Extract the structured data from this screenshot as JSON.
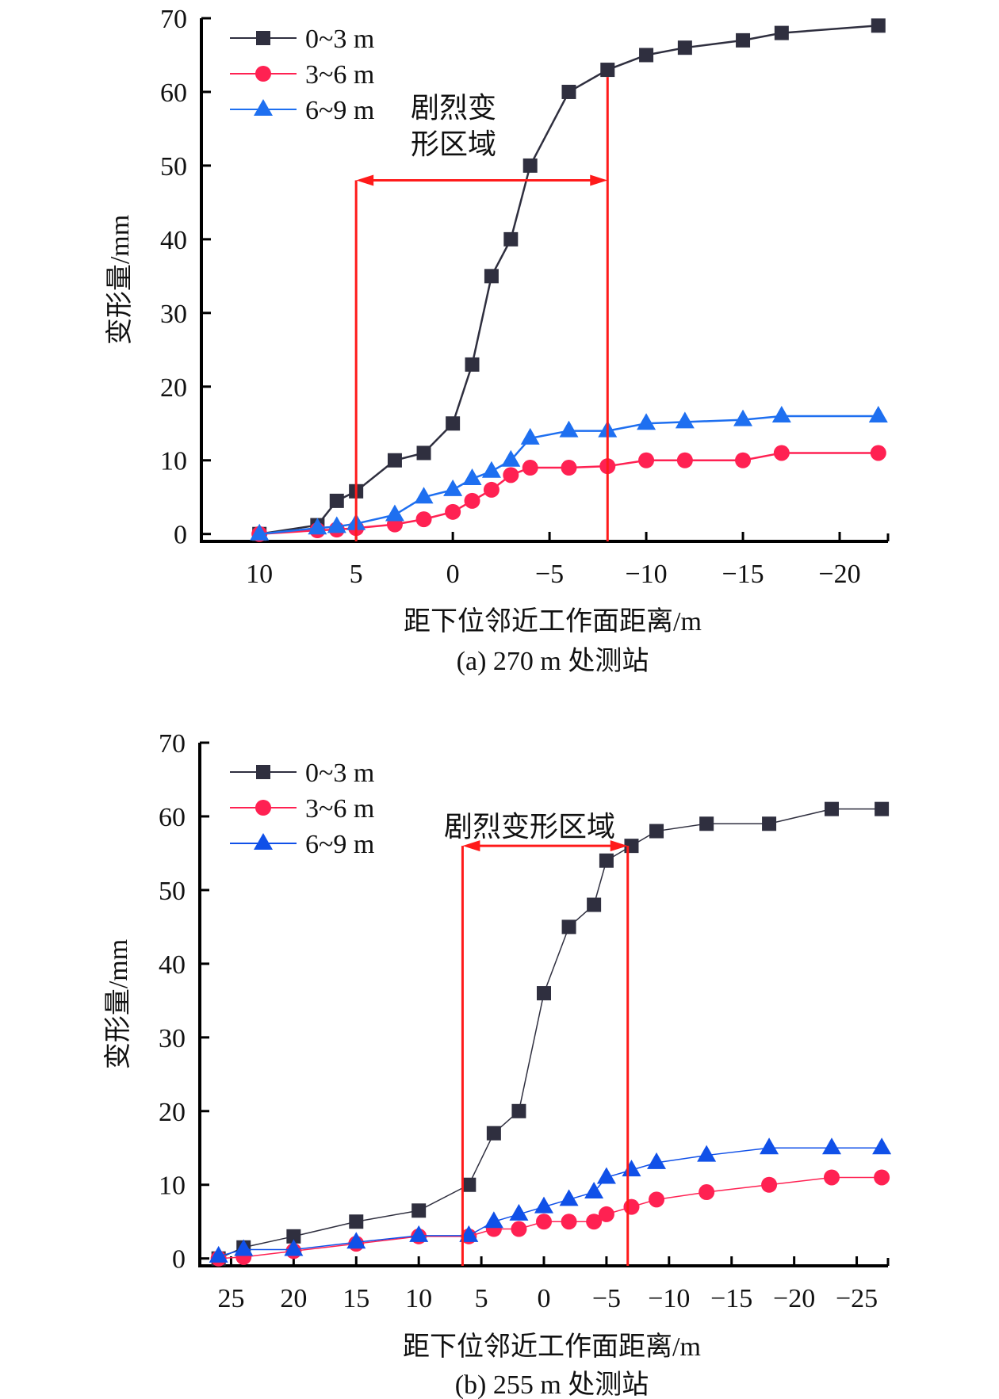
{
  "chart_data": [
    {
      "type": "line",
      "title": "(a) 270 m 处测站",
      "xlabel": "距下位邻近工作面距离/m",
      "ylabel": "变形量/mm",
      "xlim": [
        13,
        -22.5
      ],
      "ylim": [
        -1,
        70
      ],
      "x_ticks": [
        10,
        5,
        0,
        -5,
        -10,
        -15,
        -20
      ],
      "x_tick_labels": [
        "10",
        "5",
        "0",
        "−5",
        "−10",
        "−15",
        "−20"
      ],
      "y_ticks": [
        0,
        10,
        20,
        30,
        40,
        50,
        60,
        70
      ],
      "y_tick_labels": [
        "0",
        "10",
        "20",
        "30",
        "40",
        "50",
        "60",
        "70"
      ],
      "grid": false,
      "legend": "top-left",
      "series": [
        {
          "name": "0~3 m",
          "marker": "square",
          "color": "#2f2f3f",
          "x": [
            10,
            7,
            6,
            5,
            3,
            1.5,
            0,
            -1,
            -2,
            -3,
            -4,
            -6,
            -8,
            -10,
            -12,
            -15,
            -17,
            -22
          ],
          "y": [
            0,
            1.2,
            4.5,
            5.8,
            10,
            11,
            15,
            23,
            35,
            40,
            50,
            60,
            63,
            65,
            66,
            67,
            68,
            69
          ]
        },
        {
          "name": "3~6 m",
          "marker": "circle",
          "color": "#ff2152",
          "x": [
            10,
            7,
            6,
            5,
            3,
            1.5,
            0,
            -1,
            -2,
            -3,
            -4,
            -6,
            -8,
            -10,
            -12,
            -15,
            -17,
            -22
          ],
          "y": [
            0,
            0.5,
            0.6,
            0.8,
            1.3,
            2,
            3,
            4.5,
            6,
            8,
            9,
            9,
            9.2,
            10,
            10,
            10,
            11,
            11
          ]
        },
        {
          "name": "6~9 m",
          "marker": "triangle",
          "color": "#1e6ff0",
          "x": [
            10,
            7,
            6,
            5,
            3,
            1.5,
            0,
            -1,
            -2,
            -3,
            -4,
            -6,
            -8,
            -10,
            -12,
            -15,
            -17,
            -22
          ],
          "y": [
            0,
            0.8,
            1,
            1.4,
            2.6,
            5,
            6,
            7.5,
            8.5,
            10,
            13,
            14,
            14,
            15,
            15.2,
            15.5,
            16,
            16
          ]
        }
      ],
      "annotation": {
        "text_lines": [
          "剧烈变",
          "形区域"
        ],
        "x_start": 5,
        "x_end": -8,
        "arrow_y": 48,
        "color": "#ff1a1a"
      }
    },
    {
      "type": "line",
      "title": "(b) 255 m 处测站",
      "xlabel": "距下位邻近工作面距离/m",
      "ylabel": "变形量/mm",
      "xlim": [
        27.5,
        -27.5
      ],
      "ylim": [
        -1,
        70
      ],
      "x_ticks": [
        25,
        20,
        15,
        10,
        5,
        0,
        -5,
        -10,
        -15,
        -20,
        -25
      ],
      "x_tick_labels": [
        "25",
        "20",
        "15",
        "10",
        "5",
        "0",
        "−5",
        "−10",
        "−15",
        "−20",
        "−25"
      ],
      "y_ticks": [
        0,
        10,
        20,
        30,
        40,
        50,
        60,
        70
      ],
      "y_tick_labels": [
        "0",
        "10",
        "20",
        "30",
        "40",
        "50",
        "60",
        "70"
      ],
      "grid": false,
      "legend": "top-left",
      "series": [
        {
          "name": "0~3 m",
          "marker": "square",
          "color": "#2f2f3f",
          "x": [
            26,
            24,
            20,
            15,
            10,
            6,
            4,
            2,
            0,
            -2,
            -4,
            -5,
            -7,
            -9,
            -13,
            -18,
            -23,
            -27
          ],
          "y": [
            0,
            1.5,
            3,
            5,
            6.5,
            10,
            17,
            20,
            36,
            45,
            48,
            54,
            56,
            58,
            59,
            59,
            61,
            61
          ]
        },
        {
          "name": "3~6 m",
          "marker": "circle",
          "color": "#ff2152",
          "x": [
            26,
            24,
            20,
            15,
            10,
            6,
            4,
            2,
            0,
            -2,
            -4,
            -5,
            -7,
            -9,
            -13,
            -18,
            -23,
            -27
          ],
          "y": [
            0,
            0.2,
            1,
            2,
            3,
            3,
            4,
            4,
            5,
            5,
            5,
            6,
            7,
            8,
            9,
            10,
            11,
            11
          ]
        },
        {
          "name": "6~9 m",
          "marker": "triangle",
          "color": "#1050e8",
          "x": [
            26,
            24,
            20,
            15,
            10,
            6,
            4,
            2,
            0,
            -2,
            -4,
            -5,
            -7,
            -9,
            -13,
            -18,
            -23,
            -27
          ],
          "y": [
            0.3,
            1.2,
            1.2,
            2.2,
            3.1,
            3.1,
            5,
            6,
            7,
            8,
            9,
            11,
            12,
            13,
            14,
            15,
            15,
            15
          ]
        }
      ],
      "annotation": {
        "text_lines": [
          "剧烈变形区域"
        ],
        "x_start": 6.5,
        "x_end": -6.7,
        "arrow_y": 56,
        "color": "#ff1a1a"
      }
    }
  ]
}
